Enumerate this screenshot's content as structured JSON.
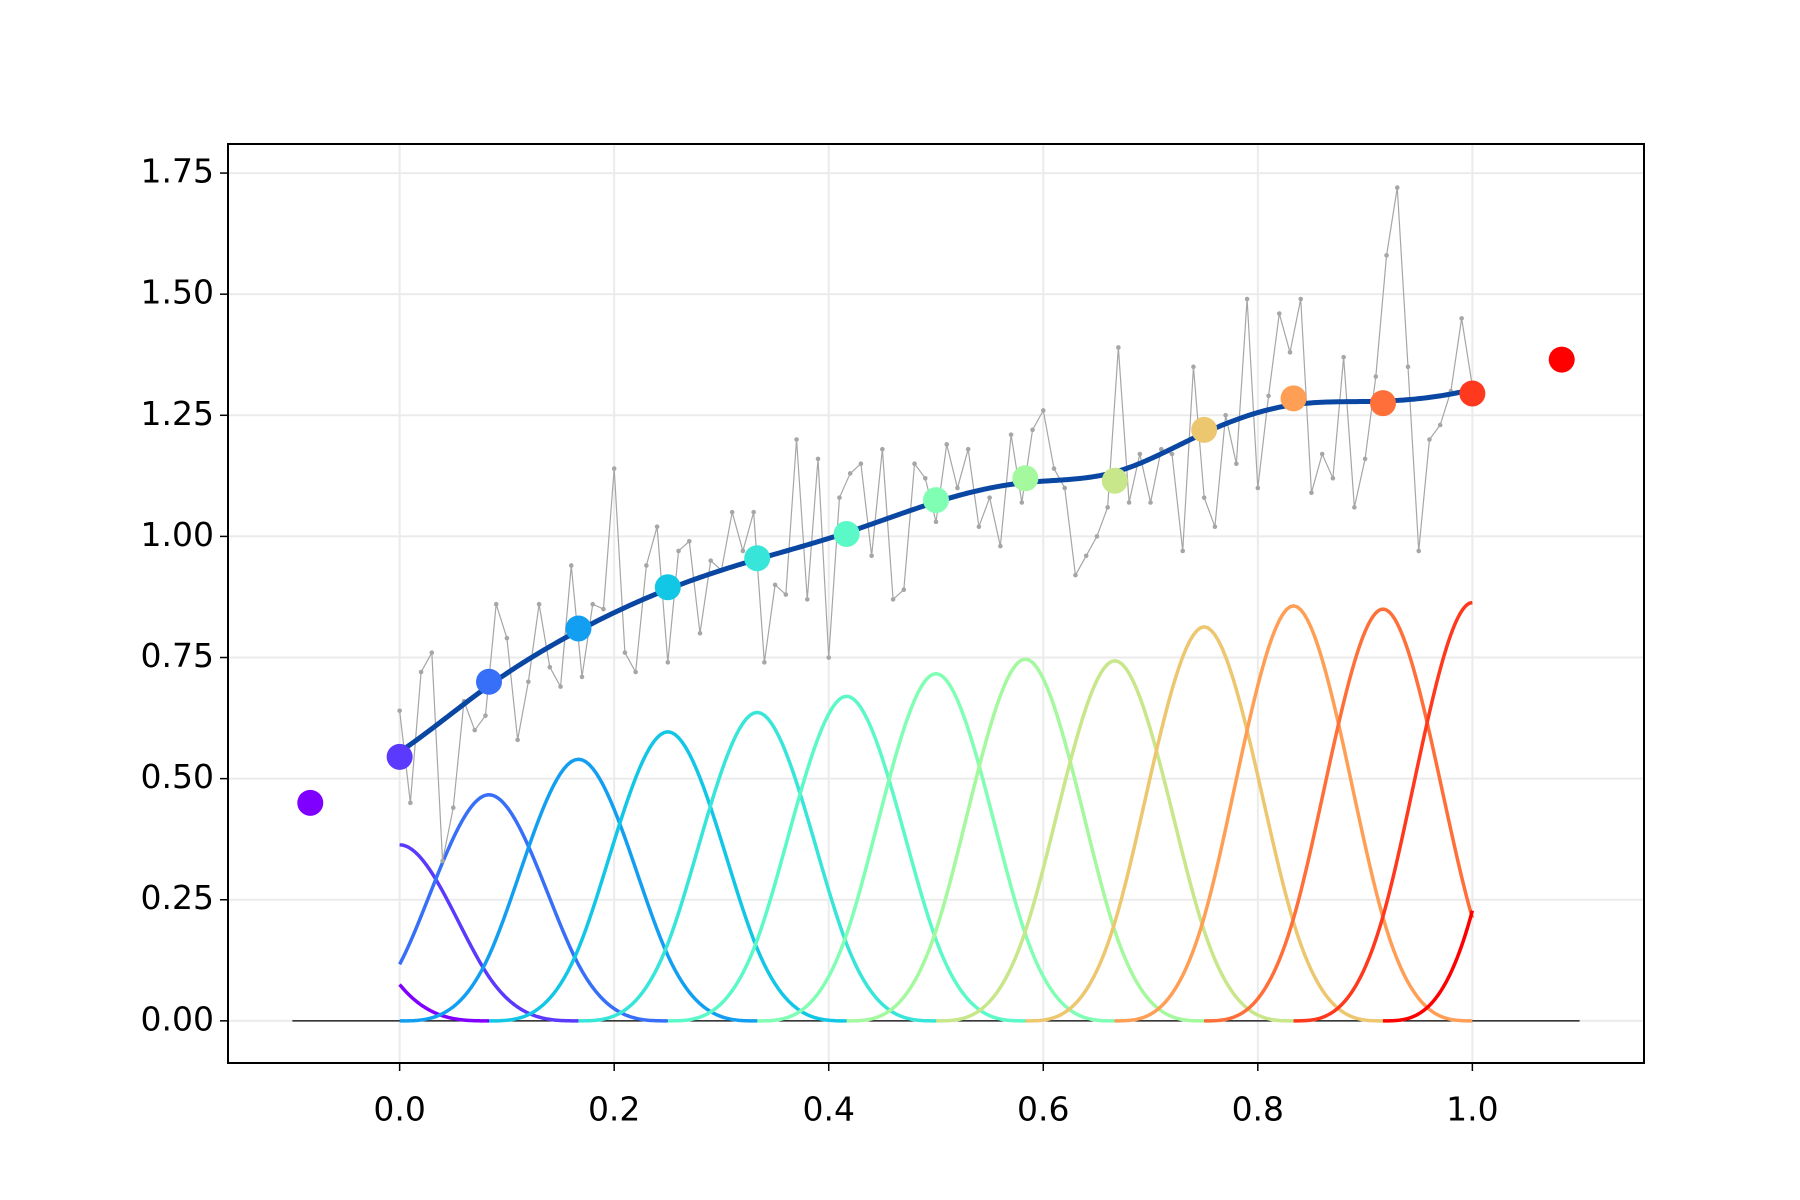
{
  "chart_data": {
    "type": "bspline",
    "xlim": [
      -0.16,
      1.16
    ],
    "ylim": [
      -0.087,
      1.81
    ],
    "xticks": [
      {
        "value": 0,
        "label": "0.0"
      },
      {
        "value": 0.2,
        "label": "0.2"
      },
      {
        "value": 0.4,
        "label": "0.4"
      },
      {
        "value": 0.6,
        "label": "0.6"
      },
      {
        "value": 0.8,
        "label": "0.8"
      },
      {
        "value": 1,
        "label": "1.0"
      }
    ],
    "yticks": [
      {
        "value": 0,
        "label": "0.00"
      },
      {
        "value": 0.25,
        "label": "0.25"
      },
      {
        "value": 0.5,
        "label": "0.50"
      },
      {
        "value": 0.75,
        "label": "0.75"
      },
      {
        "value": 1,
        "label": "1.00"
      },
      {
        "value": 1.25,
        "label": "1.25"
      },
      {
        "value": 1.5,
        "label": "1.50"
      },
      {
        "value": 1.75,
        "label": "1.75"
      }
    ],
    "grid": true,
    "hline": {
      "y": 0,
      "xmin": -0.1,
      "xmax": 1.1,
      "color": "#000000"
    },
    "samples": {
      "color": "#a6a6a6",
      "x": [
        0,
        0.01,
        0.02,
        0.03,
        0.04,
        0.05,
        0.06,
        0.07,
        0.08,
        0.09,
        0.1,
        0.11,
        0.12,
        0.13,
        0.14,
        0.15,
        0.16,
        0.17,
        0.18,
        0.19,
        0.2,
        0.21,
        0.22,
        0.23,
        0.24,
        0.25,
        0.26,
        0.27,
        0.28,
        0.29,
        0.3,
        0.31,
        0.32,
        0.33,
        0.34,
        0.35,
        0.36,
        0.37,
        0.38,
        0.39,
        0.4,
        0.41,
        0.42,
        0.43,
        0.44,
        0.45,
        0.46,
        0.47,
        0.48,
        0.49,
        0.5,
        0.51,
        0.52,
        0.53,
        0.54,
        0.55,
        0.56,
        0.57,
        0.58,
        0.59,
        0.6,
        0.61,
        0.62,
        0.63,
        0.64,
        0.65,
        0.66,
        0.67,
        0.68,
        0.69,
        0.7,
        0.71,
        0.72,
        0.73,
        0.74,
        0.75,
        0.76,
        0.77,
        0.78,
        0.79,
        0.8,
        0.81,
        0.82,
        0.83,
        0.84,
        0.85,
        0.86,
        0.87,
        0.88,
        0.89,
        0.9,
        0.91,
        0.92,
        0.93,
        0.94,
        0.95,
        0.96,
        0.97,
        0.98,
        0.99,
        1
      ],
      "values": [
        0.64,
        0.45,
        0.72,
        0.76,
        0.33,
        0.44,
        0.66,
        0.6,
        0.63,
        0.86,
        0.79,
        0.58,
        0.7,
        0.86,
        0.73,
        0.69,
        0.94,
        0.71,
        0.86,
        0.85,
        1.14,
        0.76,
        0.72,
        0.94,
        1.02,
        0.74,
        0.97,
        0.99,
        0.8,
        0.95,
        0.93,
        1.05,
        0.97,
        1.05,
        0.74,
        0.9,
        0.88,
        1.2,
        0.87,
        1.16,
        0.75,
        1.08,
        1.13,
        1.15,
        0.96,
        1.18,
        0.87,
        0.89,
        1.15,
        1.12,
        1.03,
        1.19,
        1.1,
        1.18,
        1.02,
        1.08,
        0.98,
        1.21,
        1.07,
        1.22,
        1.26,
        1.14,
        1.1,
        0.92,
        0.96,
        1.0,
        1.06,
        1.39,
        1.07,
        1.17,
        1.07,
        1.18,
        1.17,
        0.97,
        1.35,
        1.08,
        1.02,
        1.25,
        1.15,
        1.49,
        1.1,
        1.29,
        1.46,
        1.38,
        1.49,
        1.09,
        1.17,
        1.12,
        1.37,
        1.06,
        1.16,
        1.33,
        1.58,
        1.72,
        1.35,
        0.97,
        1.2,
        1.23,
        1.3,
        1.45,
        1.31
      ]
    },
    "spline_color": "#0a47a3",
    "control_points": {
      "x": [
        -0.0833,
        0,
        0.0833,
        0.1667,
        0.25,
        0.3333,
        0.4167,
        0.5,
        0.5833,
        0.6667,
        0.75,
        0.8333,
        0.9167,
        1,
        1.0833
      ],
      "values": [
        0.45,
        0.545,
        0.7,
        0.81,
        0.895,
        0.955,
        1.005,
        1.075,
        1.12,
        1.115,
        1.22,
        1.285,
        1.275,
        1.295,
        1.365
      ],
      "colors": [
        "#8000ff",
        "#5b39fd",
        "#376ff9",
        "#129ff1",
        "#12c7e6",
        "#37e6d8",
        "#5bf9c7",
        "#80ffb4",
        "#a4f99f",
        "#c8e68a",
        "#edc76f",
        "#ff9f56",
        "#ff6f39",
        "#ff391d",
        "#ff0000"
      ]
    }
  }
}
